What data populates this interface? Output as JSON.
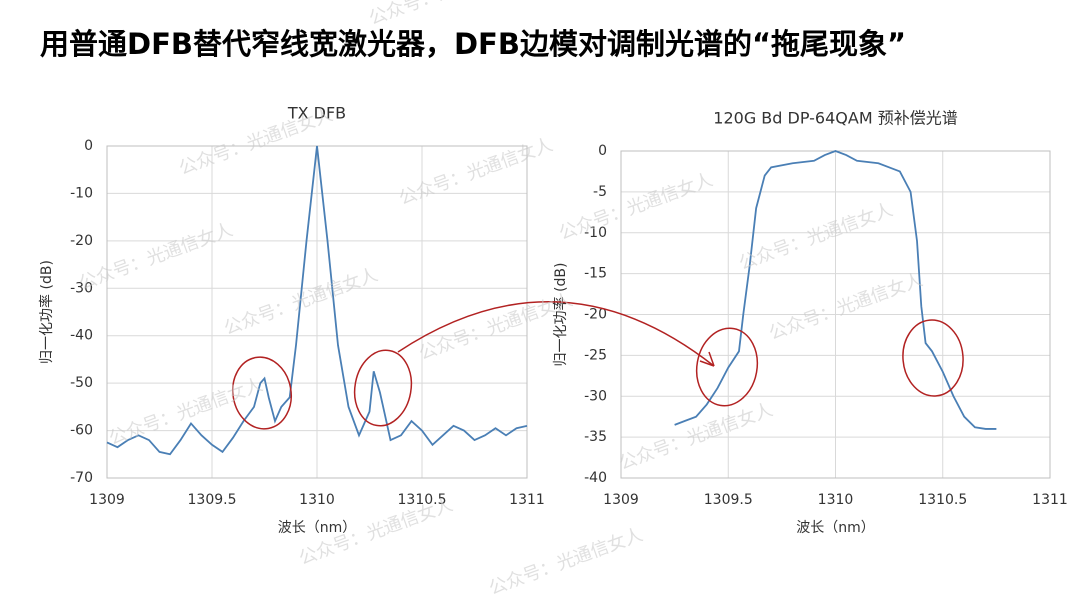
{
  "title": "用普通DFB替代窄线宽激光器，DFB边模对调制光谱的“拖尾现象”",
  "watermark": "公众号：光通信女人",
  "chart_data": [
    {
      "type": "line",
      "title": "TX DFB",
      "x_label": "波长（nm）",
      "y_label": "归一化功率 (dB)",
      "x": [
        1309.0,
        1309.05,
        1309.1,
        1309.15,
        1309.2,
        1309.25,
        1309.3,
        1309.35,
        1309.4,
        1309.45,
        1309.5,
        1309.55,
        1309.6,
        1309.65,
        1309.7,
        1309.73,
        1309.75,
        1309.77,
        1309.8,
        1309.83,
        1309.87,
        1309.9,
        1309.95,
        1310.0,
        1310.05,
        1310.1,
        1310.15,
        1310.2,
        1310.25,
        1310.27,
        1310.3,
        1310.35,
        1310.4,
        1310.45,
        1310.5,
        1310.55,
        1310.6,
        1310.65,
        1310.7,
        1310.75,
        1310.8,
        1310.85,
        1310.9,
        1310.95,
        1311.0
      ],
      "series": [
        {
          "color": "#4a7fb5",
          "values": [
            -62.5,
            -63.5,
            -62,
            -61,
            -62,
            -64.5,
            -65,
            -62,
            -58.5,
            -61,
            -63,
            -64.5,
            -61.5,
            -58,
            -55,
            -50,
            -49,
            -53,
            -58,
            -55,
            -53,
            -42,
            -20,
            0,
            -20,
            -42,
            -55,
            -61,
            -56,
            -47.5,
            -52,
            -62,
            -61,
            -58,
            -60,
            -63,
            -61,
            -59,
            -60,
            -62,
            -61,
            -59.5,
            -61,
            -59.5,
            -59
          ]
        }
      ],
      "xlim": [
        1309,
        1311
      ],
      "xticks": [
        1309,
        1309.5,
        1310,
        1310.5,
        1311
      ],
      "ylim": [
        -70,
        0
      ],
      "yticks": [
        0,
        -10,
        -20,
        -30,
        -40,
        -50,
        -60,
        -70
      ],
      "grid": true
    },
    {
      "type": "line",
      "title": "120G Bd DP-64QAM 预补偿光谱",
      "x_label": "波长（nm）",
      "y_label": "归一化功率 (dB)",
      "x": [
        1309.25,
        1309.3,
        1309.35,
        1309.4,
        1309.45,
        1309.5,
        1309.55,
        1309.57,
        1309.6,
        1309.63,
        1309.67,
        1309.7,
        1309.8,
        1309.9,
        1309.95,
        1310.0,
        1310.05,
        1310.1,
        1310.2,
        1310.3,
        1310.35,
        1310.38,
        1310.4,
        1310.42,
        1310.45,
        1310.5,
        1310.55,
        1310.6,
        1310.65,
        1310.7,
        1310.75
      ],
      "series": [
        {
          "color": "#4a7fb5",
          "values": [
            -33.5,
            -33,
            -32.5,
            -31,
            -29,
            -26.5,
            -24.5,
            -20,
            -14,
            -7,
            -3,
            -2,
            -1.5,
            -1.2,
            -0.5,
            0,
            -0.5,
            -1.2,
            -1.5,
            -2.5,
            -5,
            -11,
            -19,
            -23.5,
            -24.5,
            -27,
            -30,
            -32.5,
            -33.8,
            -34,
            -34
          ]
        }
      ],
      "xlim": [
        1309,
        1311
      ],
      "xticks": [
        1309,
        1309.5,
        1310,
        1310.5,
        1311
      ],
      "ylim": [
        -40,
        0
      ],
      "yticks": [
        0,
        -5,
        -10,
        -15,
        -20,
        -25,
        -30,
        -35,
        -40
      ],
      "grid": true
    }
  ]
}
